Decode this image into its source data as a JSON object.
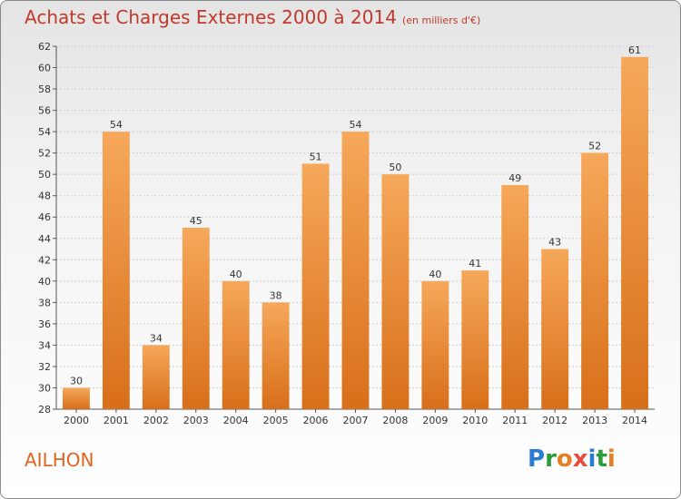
{
  "header": {
    "title": "Achats et Charges Externes 2000 à 2014",
    "unit": "(en milliers d'€)"
  },
  "footer": {
    "commune": "AILHON",
    "logo_letters": [
      "P",
      "r",
      "o",
      "x",
      "i",
      "t",
      "i"
    ],
    "logo_colors": [
      "#2a7bd4",
      "#2a9d3a",
      "#e67e22",
      "#e74c3c",
      "#2a7bd4",
      "#2a9d3a",
      "#e67e22"
    ]
  },
  "colors": {
    "bar_light": "#f6a85a",
    "bar_dark": "#d86f1a",
    "grid": "#cfcfcf",
    "title": "#c0392b",
    "commune": "#e0651c"
  },
  "chart_data": {
    "type": "bar",
    "categories": [
      "2000",
      "2001",
      "2002",
      "2003",
      "2004",
      "2005",
      "2006",
      "2007",
      "2008",
      "2009",
      "2010",
      "2011",
      "2012",
      "2013",
      "2014"
    ],
    "values": [
      30,
      54,
      34,
      45,
      40,
      38,
      51,
      54,
      50,
      40,
      41,
      49,
      43,
      52,
      61
    ],
    "title": "Achats et Charges Externes 2000 à 2014",
    "ylim": [
      28,
      62
    ],
    "yticks": [
      28,
      30,
      32,
      34,
      36,
      38,
      40,
      42,
      44,
      46,
      48,
      50,
      52,
      54,
      56,
      58,
      60,
      62
    ],
    "grid": true,
    "legend": "none"
  }
}
